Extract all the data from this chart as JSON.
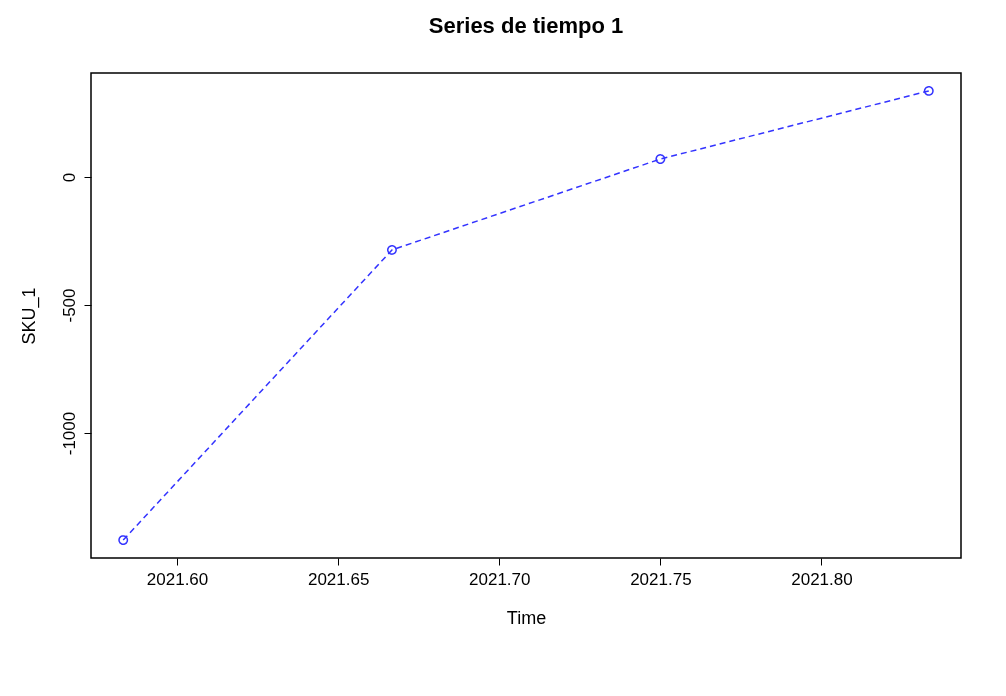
{
  "chart_data": {
    "type": "line",
    "title": "Series de tiempo 1",
    "xlabel": "Time",
    "ylabel": "SKU_1",
    "x": [
      2021.5833,
      2021.6667,
      2021.75,
      2021.8333
    ],
    "series": [
      {
        "color": "#3333ff",
        "values": [
          -1418,
          -285,
          70,
          336
        ]
      }
    ],
    "xlim": [
      2021.5733,
      2021.8433
    ],
    "ylim": [
      -1488,
      406
    ],
    "xticks": [
      {
        "value": 2021.6,
        "label": "2021.60"
      },
      2021.65,
      {
        "value": 2021.7,
        "label": "2021.70"
      },
      2021.75,
      {
        "value": 2021.8,
        "label": "2021.80"
      }
    ],
    "yticks": [
      -1000,
      -500,
      0
    ],
    "grid": false,
    "marker": "circle",
    "line_style": "dashed"
  }
}
